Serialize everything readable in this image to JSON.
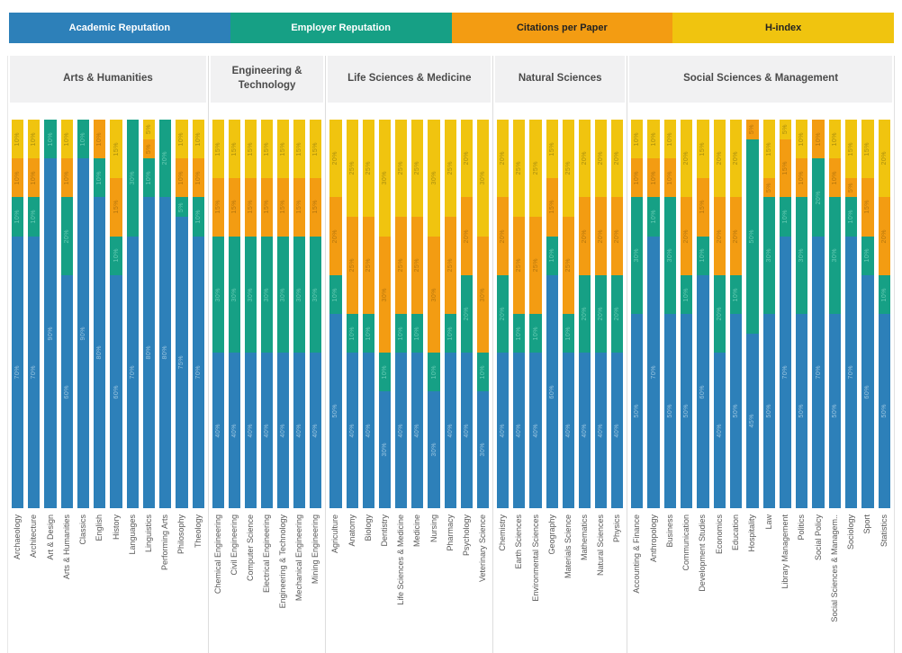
{
  "legend": [
    {
      "label": "Academic Reputation",
      "color": "#2d80b9",
      "text_color": "#ffffff",
      "value_label_color": "#9dc6e0"
    },
    {
      "label": "Employer Reputation",
      "color": "#16a085",
      "text_color": "#ffffff",
      "value_label_color": "#69ccb4"
    },
    {
      "label": "Citations per Paper",
      "color": "#f39c12",
      "text_color": "#222222",
      "value_label_color": "#b5760d"
    },
    {
      "label": "H-index",
      "color": "#f0c40f",
      "text_color": "#222222",
      "value_label_color": "#a98e0e"
    }
  ],
  "chart_data": {
    "type": "bar",
    "stacked": true,
    "orientation": "vertical",
    "unit": "%",
    "ylim": [
      0,
      100
    ],
    "grid": false,
    "legend_position": "top",
    "series_order": [
      "Academic Reputation",
      "Employer Reputation",
      "Citations per Paper",
      "H-index"
    ],
    "groups": [
      {
        "name": "Arts & Humanities",
        "subjects": [
          {
            "label": "Archaeology",
            "values": [
              70,
              10,
              10,
              10
            ]
          },
          {
            "label": "Architecture",
            "values": [
              70,
              10,
              10,
              10
            ]
          },
          {
            "label": "Art & Design",
            "values": [
              90,
              10,
              0,
              0
            ]
          },
          {
            "label": "Arts & Humanities",
            "values": [
              60,
              20,
              10,
              10
            ]
          },
          {
            "label": "Classics",
            "values": [
              90,
              10,
              0,
              0
            ]
          },
          {
            "label": "English",
            "values": [
              80,
              10,
              10,
              0
            ]
          },
          {
            "label": "History",
            "values": [
              60,
              10,
              15,
              15
            ]
          },
          {
            "label": "Languages",
            "values": [
              70,
              30,
              0,
              0
            ]
          },
          {
            "label": "Linguistics",
            "values": [
              80,
              10,
              5,
              5
            ]
          },
          {
            "label": "Performing Arts",
            "values": [
              80,
              20,
              0,
              0
            ]
          },
          {
            "label": "Philosophy",
            "values": [
              75,
              5,
              10,
              10
            ]
          },
          {
            "label": "Theology",
            "values": [
              70,
              10,
              10,
              10
            ]
          }
        ]
      },
      {
        "name": "Engineering & Technology",
        "subjects": [
          {
            "label": "Chemical Engineering",
            "values": [
              40,
              30,
              15,
              15
            ]
          },
          {
            "label": "Civil Engineering",
            "values": [
              40,
              30,
              15,
              15
            ]
          },
          {
            "label": "Computer Science",
            "values": [
              40,
              30,
              15,
              15
            ]
          },
          {
            "label": "Electrical Engineering",
            "values": [
              40,
              30,
              15,
              15
            ]
          },
          {
            "label": "Engineering & Technology",
            "values": [
              40,
              30,
              15,
              15
            ]
          },
          {
            "label": "Mechanical Engineering",
            "values": [
              40,
              30,
              15,
              15
            ]
          },
          {
            "label": "Mining Engineering",
            "values": [
              40,
              30,
              15,
              15
            ]
          }
        ]
      },
      {
        "name": "Life Sciences & Medicine",
        "subjects": [
          {
            "label": "Agriculture",
            "values": [
              50,
              10,
              20,
              20
            ]
          },
          {
            "label": "Anatomy",
            "values": [
              40,
              10,
              25,
              25
            ]
          },
          {
            "label": "Biology",
            "values": [
              40,
              10,
              25,
              25
            ]
          },
          {
            "label": "Dentistry",
            "values": [
              30,
              10,
              30,
              30
            ]
          },
          {
            "label": "Life Sciences & Medicine",
            "values": [
              40,
              10,
              25,
              25
            ]
          },
          {
            "label": "Medicine",
            "values": [
              40,
              10,
              25,
              25
            ]
          },
          {
            "label": "Nursing",
            "values": [
              30,
              10,
              30,
              30
            ]
          },
          {
            "label": "Pharmacy",
            "values": [
              40,
              10,
              25,
              25
            ]
          },
          {
            "label": "Psychology",
            "values": [
              40,
              20,
              20,
              20
            ]
          },
          {
            "label": "Veterinary Science",
            "values": [
              30,
              10,
              30,
              30
            ]
          }
        ]
      },
      {
        "name": "Natural Sciences",
        "subjects": [
          {
            "label": "Chemistry",
            "values": [
              40,
              20,
              20,
              20
            ]
          },
          {
            "label": "Earth Sciences",
            "values": [
              40,
              10,
              25,
              25
            ]
          },
          {
            "label": "Environmental Sciences",
            "values": [
              40,
              10,
              25,
              25
            ]
          },
          {
            "label": "Geography",
            "values": [
              60,
              10,
              15,
              15
            ]
          },
          {
            "label": "Materials Science",
            "values": [
              40,
              10,
              25,
              25
            ]
          },
          {
            "label": "Mathematics",
            "values": [
              40,
              20,
              20,
              20
            ]
          },
          {
            "label": "Natural Sciences",
            "values": [
              40,
              20,
              20,
              20
            ]
          },
          {
            "label": "Physics",
            "values": [
              40,
              20,
              20,
              20
            ]
          }
        ]
      },
      {
        "name": "Social Sciences & Management",
        "subjects": [
          {
            "label": "Accounting & Finance",
            "values": [
              50,
              30,
              10,
              10
            ]
          },
          {
            "label": "Anthropology",
            "values": [
              70,
              10,
              10,
              10
            ]
          },
          {
            "label": "Business",
            "values": [
              50,
              30,
              10,
              10
            ]
          },
          {
            "label": "Communication",
            "values": [
              50,
              10,
              20,
              20
            ]
          },
          {
            "label": "Development Studies",
            "values": [
              60,
              10,
              15,
              15
            ]
          },
          {
            "label": "Economics",
            "values": [
              40,
              20,
              20,
              20
            ]
          },
          {
            "label": "Education",
            "values": [
              50,
              10,
              20,
              20
            ]
          },
          {
            "label": "Hospitality",
            "values": [
              45,
              50,
              5,
              0
            ]
          },
          {
            "label": "Law",
            "values": [
              50,
              30,
              5,
              15
            ]
          },
          {
            "label": "Library Management",
            "values": [
              70,
              10,
              15,
              5
            ]
          },
          {
            "label": "Politics",
            "values": [
              50,
              30,
              10,
              10
            ]
          },
          {
            "label": "Social Policy",
            "values": [
              70,
              20,
              10,
              0
            ]
          },
          {
            "label": "Social Sciences & Managem..",
            "values": [
              50,
              30,
              10,
              10
            ]
          },
          {
            "label": "Sociology",
            "values": [
              70,
              10,
              5,
              15
            ]
          },
          {
            "label": "Sport",
            "values": [
              60,
              10,
              15,
              15
            ]
          },
          {
            "label": "Statistics",
            "values": [
              50,
              10,
              20,
              20
            ]
          }
        ]
      }
    ]
  }
}
